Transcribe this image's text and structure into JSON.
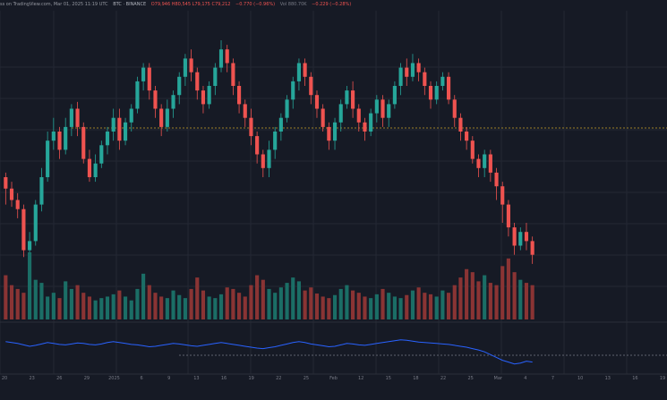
{
  "header": {
    "published": "ss on TradingView.com, Mar 01, 2025 11:19 UTC",
    "symbol": "BTC · BINANCE",
    "ohlc": "O79,946  H80,545  L79,175  C79,212",
    "change": "−0.770 (−0.96%)",
    "vol": "Vol 880.70K",
    "vol_change": "−0.229 (−0.28%)"
  },
  "x_axis": {
    "labels": [
      "20",
      "23",
      "26",
      "29",
      "2025",
      "6",
      "9",
      "13",
      "16",
      "19",
      "22",
      "25",
      "Feb",
      "12",
      "15",
      "18",
      "22",
      "25",
      "Mar",
      "4",
      "7",
      "10",
      "13",
      "16",
      "19"
    ]
  },
  "colors": {
    "background": "#161a25",
    "grid": "#242833",
    "bull": "#26a69a",
    "bear": "#ef5350",
    "vol_bull": "#1b6e66",
    "vol_bear": "#8a3434",
    "oscillator": "#2962ff",
    "reference_line": "#c9a227"
  },
  "chart_data": {
    "type": "candlestick",
    "title": "",
    "xlabel": "",
    "ylabel": "",
    "grid": true,
    "series": [
      {
        "name": "",
        "candles": [
          [
            40,
            35,
            42,
            28
          ],
          [
            35,
            30,
            38,
            27
          ],
          [
            30,
            26,
            33,
            22
          ],
          [
            26,
            8,
            28,
            5
          ],
          [
            8,
            12,
            16,
            4
          ],
          [
            12,
            28,
            30,
            10
          ],
          [
            28,
            40,
            44,
            25
          ],
          [
            40,
            56,
            60,
            38
          ],
          [
            56,
            60,
            66,
            52
          ],
          [
            60,
            52,
            62,
            48
          ],
          [
            52,
            62,
            66,
            50
          ],
          [
            62,
            70,
            72,
            58
          ],
          [
            70,
            62,
            73,
            58
          ],
          [
            62,
            48,
            64,
            46
          ],
          [
            48,
            40,
            52,
            38
          ],
          [
            40,
            46,
            50,
            38
          ],
          [
            46,
            54,
            56,
            44
          ],
          [
            54,
            60,
            62,
            50
          ],
          [
            60,
            66,
            70,
            56
          ],
          [
            66,
            56,
            70,
            52
          ],
          [
            56,
            64,
            66,
            54
          ],
          [
            64,
            70,
            72,
            60
          ],
          [
            70,
            82,
            84,
            68
          ],
          [
            82,
            88,
            90,
            78
          ],
          [
            88,
            78,
            90,
            74
          ],
          [
            78,
            70,
            80,
            66
          ],
          [
            70,
            62,
            72,
            58
          ],
          [
            62,
            70,
            74,
            60
          ],
          [
            70,
            76,
            78,
            66
          ],
          [
            76,
            84,
            86,
            72
          ],
          [
            84,
            92,
            94,
            80
          ],
          [
            92,
            86,
            96,
            82
          ],
          [
            86,
            78,
            88,
            74
          ],
          [
            78,
            72,
            80,
            68
          ],
          [
            72,
            80,
            82,
            70
          ],
          [
            80,
            88,
            90,
            76
          ],
          [
            88,
            96,
            100,
            86
          ],
          [
            96,
            90,
            98,
            86
          ],
          [
            90,
            80,
            92,
            76
          ],
          [
            80,
            72,
            82,
            68
          ],
          [
            72,
            66,
            74,
            62
          ],
          [
            66,
            58,
            70,
            54
          ],
          [
            58,
            50,
            60,
            46
          ],
          [
            50,
            44,
            52,
            40
          ],
          [
            44,
            52,
            56,
            40
          ],
          [
            52,
            60,
            62,
            48
          ],
          [
            60,
            66,
            68,
            56
          ],
          [
            66,
            74,
            76,
            64
          ],
          [
            74,
            82,
            84,
            70
          ],
          [
            82,
            90,
            92,
            78
          ],
          [
            90,
            84,
            92,
            80
          ],
          [
            84,
            76,
            86,
            72
          ],
          [
            76,
            70,
            78,
            66
          ],
          [
            70,
            62,
            72,
            60
          ],
          [
            62,
            56,
            64,
            52
          ],
          [
            56,
            64,
            66,
            52
          ],
          [
            64,
            72,
            74,
            60
          ],
          [
            72,
            78,
            80,
            70
          ],
          [
            78,
            70,
            82,
            66
          ],
          [
            70,
            64,
            72,
            60
          ],
          [
            64,
            60,
            66,
            56
          ],
          [
            60,
            68,
            70,
            58
          ],
          [
            68,
            74,
            76,
            64
          ],
          [
            74,
            66,
            76,
            62
          ],
          [
            66,
            72,
            74,
            62
          ],
          [
            72,
            80,
            82,
            70
          ],
          [
            80,
            88,
            90,
            76
          ],
          [
            88,
            84,
            92,
            80
          ],
          [
            84,
            90,
            94,
            82
          ],
          [
            90,
            86,
            92,
            82
          ],
          [
            86,
            80,
            88,
            76
          ],
          [
            80,
            74,
            82,
            70
          ],
          [
            74,
            80,
            82,
            72
          ],
          [
            80,
            84,
            86,
            78
          ],
          [
            84,
            74,
            86,
            72
          ],
          [
            74,
            66,
            76,
            62
          ],
          [
            66,
            60,
            68,
            56
          ],
          [
            60,
            56,
            62,
            52
          ],
          [
            56,
            48,
            58,
            46
          ],
          [
            48,
            44,
            50,
            40
          ],
          [
            44,
            50,
            52,
            40
          ],
          [
            50,
            42,
            52,
            38
          ],
          [
            42,
            36,
            44,
            30
          ],
          [
            36,
            28,
            38,
            20
          ],
          [
            28,
            18,
            30,
            14
          ],
          [
            18,
            10,
            20,
            6
          ],
          [
            10,
            16,
            18,
            8
          ],
          [
            16,
            12,
            20,
            8
          ],
          [
            12,
            6,
            14,
            2
          ]
        ],
        "volume": [
          58,
          45,
          40,
          35,
          88,
          52,
          48,
          30,
          35,
          28,
          50,
          40,
          45,
          35,
          30,
          25,
          28,
          30,
          33,
          38,
          30,
          25,
          40,
          60,
          45,
          35,
          30,
          28,
          38,
          32,
          28,
          40,
          55,
          38,
          30,
          28,
          33,
          42,
          40,
          35,
          30,
          45,
          58,
          52,
          40,
          35,
          42,
          48,
          55,
          50,
          38,
          42,
          34,
          30,
          28,
          32,
          40,
          45,
          38,
          35,
          30,
          28,
          33,
          40,
          35,
          30,
          28,
          32,
          38,
          42,
          35,
          33,
          30,
          38,
          35,
          45,
          55,
          66,
          62,
          50,
          58,
          48,
          45,
          70,
          80,
          62,
          52,
          48,
          45
        ]
      },
      {
        "name": "",
        "oscillator": [
          62,
          60,
          58,
          55,
          52,
          54,
          57,
          60,
          58,
          56,
          55,
          57,
          59,
          58,
          56,
          55,
          57,
          60,
          62,
          60,
          58,
          56,
          55,
          53,
          51,
          52,
          54,
          56,
          58,
          57,
          55,
          53,
          52,
          54,
          56,
          58,
          60,
          58,
          56,
          54,
          52,
          50,
          48,
          47,
          49,
          51,
          54,
          57,
          60,
          62,
          60,
          57,
          55,
          53,
          51,
          52,
          55,
          58,
          57,
          55,
          54,
          56,
          58,
          60,
          62,
          64,
          66,
          65,
          63,
          61,
          60,
          59,
          58,
          57,
          56,
          54,
          52,
          50,
          47,
          44,
          40,
          34,
          28,
          22,
          18,
          14,
          16,
          20,
          18
        ]
      }
    ]
  }
}
